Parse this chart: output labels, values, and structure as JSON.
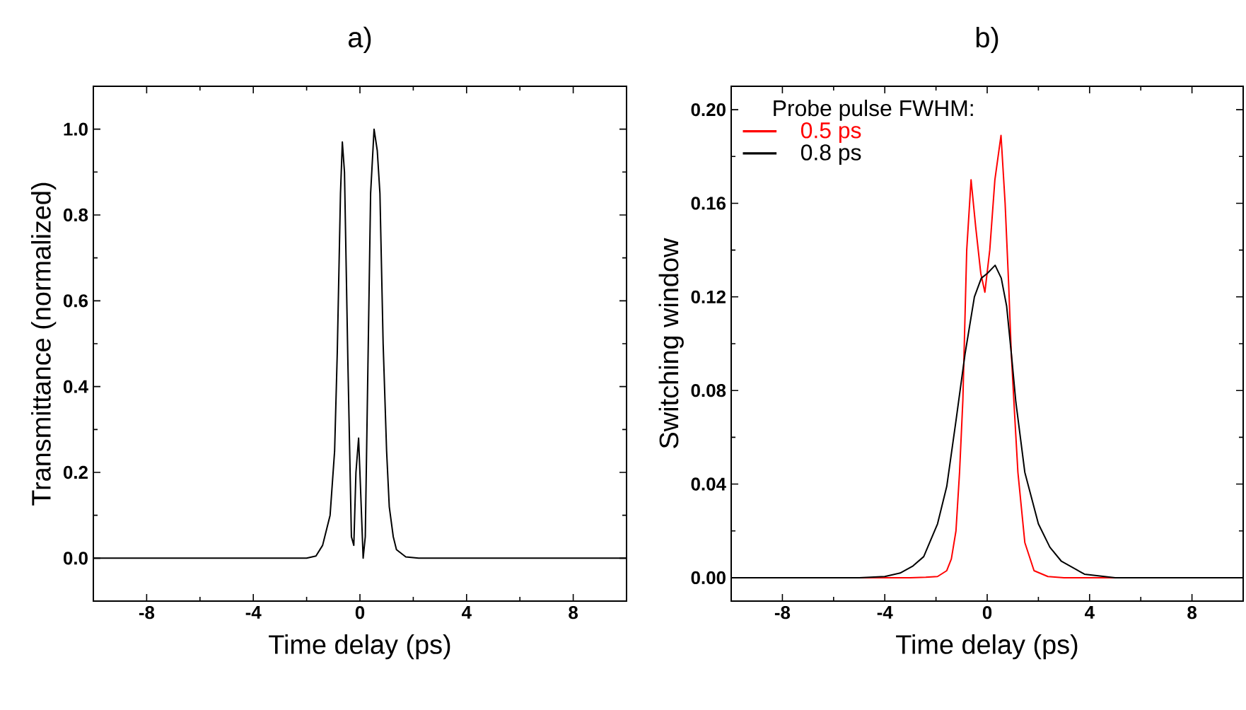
{
  "chart_data": [
    {
      "type": "line",
      "title": "a)",
      "xlabel": "Time delay (ps)",
      "ylabel": "Transmittance (normalized)",
      "xlim": [
        -10,
        10
      ],
      "ylim": [
        -0.1,
        1.1
      ],
      "xticks": [
        -8,
        {
          "value": -6,
          "label": null
        },
        -4,
        {
          "value": -2,
          "label": null
        },
        0,
        {
          "value": 2,
          "label": null
        },
        4,
        {
          "value": 6,
          "label": null
        },
        8
      ],
      "yticks": [
        {
          "value": 0,
          "label": "0.0"
        },
        {
          "value": 0.1,
          "label": null
        },
        {
          "value": 0.2,
          "label": "0.2"
        },
        {
          "value": 0.3,
          "label": null
        },
        {
          "value": 0.4,
          "label": "0.4"
        },
        {
          "value": 0.5,
          "label": null
        },
        {
          "value": 0.6,
          "label": "0.6"
        },
        {
          "value": 0.7,
          "label": null
        },
        {
          "value": 0.8,
          "label": "0.8"
        },
        {
          "value": 0.9,
          "label": null
        },
        {
          "value": 1.0,
          "label": "1.0"
        }
      ],
      "series": [
        {
          "color": "#000000",
          "x": [
            -10,
            -2,
            -1.65,
            -1.4,
            -1.12,
            -0.95,
            -0.85,
            -0.73,
            -0.66,
            -0.58,
            -0.45,
            -0.32,
            -0.23,
            -0.15,
            -0.05,
            0.03,
            0.12,
            0.2,
            0.3,
            0.4,
            0.53,
            0.65,
            0.75,
            0.87,
            1.0,
            1.1,
            1.25,
            1.37,
            1.72,
            2.2,
            10
          ],
          "values": [
            0,
            0,
            0.005,
            0.03,
            0.1,
            0.25,
            0.48,
            0.85,
            0.97,
            0.9,
            0.45,
            0.05,
            0.03,
            0.2,
            0.28,
            0.15,
            0.0,
            0.05,
            0.45,
            0.85,
            1.0,
            0.95,
            0.85,
            0.5,
            0.25,
            0.12,
            0.05,
            0.02,
            0.003,
            0,
            0
          ]
        }
      ]
    },
    {
      "type": "line",
      "title": "b)",
      "xlabel": "Time delay (ps)",
      "ylabel": "Switching window",
      "xlim": [
        -10,
        10
      ],
      "ylim": [
        -0.01,
        0.21
      ],
      "legend": "top left",
      "legend_title": "Probe pulse FWHM:",
      "xticks": [
        -8,
        {
          "value": -6,
          "label": null
        },
        -4,
        {
          "value": -2,
          "label": null
        },
        0,
        {
          "value": 2,
          "label": null
        },
        4,
        {
          "value": 6,
          "label": null
        },
        8
      ],
      "yticks": [
        {
          "value": 0,
          "label": "0.00"
        },
        {
          "value": 0.02,
          "label": null
        },
        {
          "value": 0.04,
          "label": "0.04"
        },
        {
          "value": 0.06,
          "label": null
        },
        {
          "value": 0.08,
          "label": "0.08"
        },
        {
          "value": 0.1,
          "label": null
        },
        {
          "value": 0.12,
          "label": "0.12"
        },
        {
          "value": 0.14,
          "label": null
        },
        {
          "value": 0.16,
          "label": "0.16"
        },
        {
          "value": 0.18,
          "label": null
        },
        {
          "value": 0.2,
          "label": "0.20"
        }
      ],
      "series": [
        {
          "name": "0.5 ps",
          "color": "#ff0000",
          "x": [
            -10,
            -3,
            -2.4,
            -1.94,
            -1.58,
            -1.4,
            -1.22,
            -1.08,
            -0.95,
            -0.8,
            -0.63,
            -0.45,
            -0.25,
            -0.09,
            0.1,
            0.3,
            0.54,
            0.7,
            0.84,
            0.94,
            1.07,
            1.2,
            1.47,
            1.83,
            2.37,
            3,
            10
          ],
          "values": [
            0,
            0,
            0.0002,
            0.0005,
            0.003,
            0.008,
            0.02,
            0.045,
            0.076,
            0.14,
            0.17,
            0.15,
            0.13,
            0.122,
            0.14,
            0.17,
            0.189,
            0.16,
            0.125,
            0.096,
            0.07,
            0.045,
            0.015,
            0.003,
            0.0005,
            0,
            0
          ]
        },
        {
          "name": "0.8 ps",
          "color": "#000000",
          "x": [
            -10,
            -5,
            -4,
            -3.4,
            -2.9,
            -2.48,
            -1.94,
            -1.58,
            -1.22,
            -0.86,
            -0.5,
            -0.23,
            0,
            0.31,
            0.55,
            0.76,
            0.95,
            1.12,
            1.47,
            2.0,
            2.45,
            2.9,
            3.8,
            5,
            10
          ],
          "values": [
            0,
            0,
            0.0005,
            0.002,
            0.005,
            0.009,
            0.023,
            0.039,
            0.067,
            0.096,
            0.12,
            0.128,
            0.13,
            0.1335,
            0.128,
            0.116,
            0.095,
            0.075,
            0.045,
            0.023,
            0.013,
            0.007,
            0.0015,
            0,
            0
          ]
        }
      ]
    }
  ]
}
